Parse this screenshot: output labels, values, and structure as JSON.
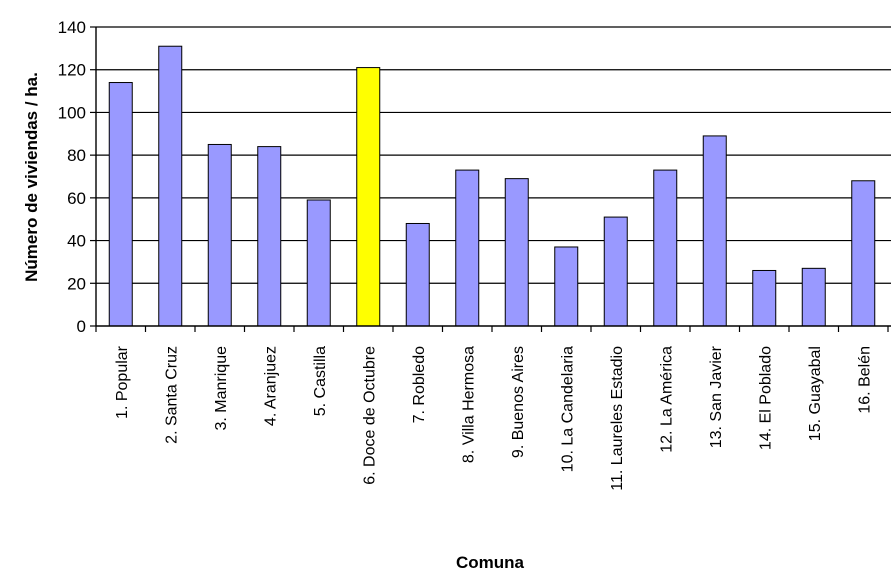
{
  "chart_data": {
    "type": "bar",
    "title": "",
    "xlabel": "Comuna",
    "ylabel": "Número de viviendas / ha.",
    "ylim": [
      0,
      140
    ],
    "yticks": [
      0,
      20,
      40,
      60,
      80,
      100,
      120,
      140
    ],
    "grid": "horizontal",
    "categories": [
      "1. Popular",
      "2. Santa Cruz",
      "3. Manrique",
      "4. Aranjuez",
      "5. Castilla",
      "6. Doce de Octubre",
      "7. Robledo",
      "8. Villa Hermosa",
      "9. Buenos Aires",
      "10. La Candelaria",
      "11. Laureles Estadio",
      "12. La América",
      "13. San Javier",
      "14. El Poblado",
      "15. Guayabal",
      "16. Belén"
    ],
    "values": [
      114,
      131,
      85,
      84,
      59,
      121,
      48,
      73,
      69,
      37,
      51,
      73,
      89,
      26,
      27,
      68
    ],
    "highlight_index": 5,
    "colors": {
      "bar": "#9999ff",
      "highlight": "#ffff00",
      "bar_edge": "#000000",
      "grid": "#000000"
    }
  }
}
